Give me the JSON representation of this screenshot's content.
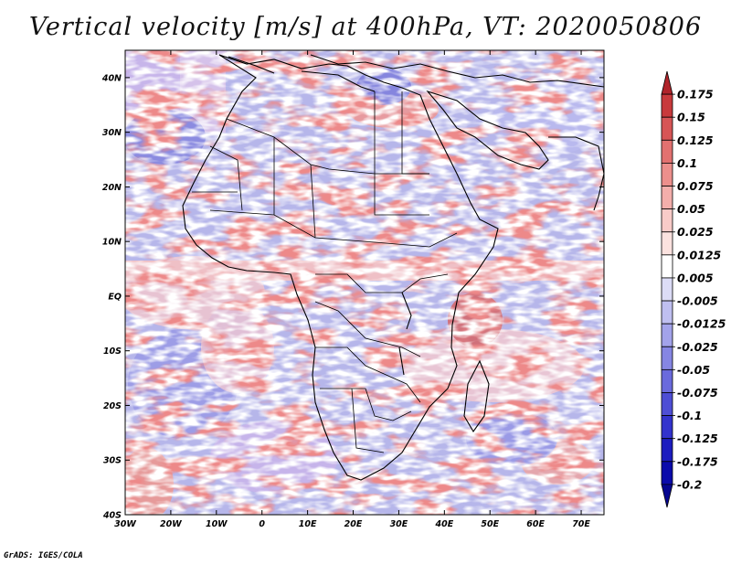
{
  "title": "Vertical velocity [m/s] at 400hPa, VT: 2020050806",
  "credit": "GrADS: IGES/COLA",
  "map": {
    "lon_range": [
      -30,
      75
    ],
    "lat_range": [
      -40,
      45
    ],
    "x_ticks": [
      {
        "lon": -30,
        "label": "30W"
      },
      {
        "lon": -20,
        "label": "20W"
      },
      {
        "lon": -10,
        "label": "10W"
      },
      {
        "lon": 0,
        "label": "0"
      },
      {
        "lon": 10,
        "label": "10E"
      },
      {
        "lon": 20,
        "label": "20E"
      },
      {
        "lon": 30,
        "label": "30E"
      },
      {
        "lon": 40,
        "label": "40E"
      },
      {
        "lon": 50,
        "label": "50E"
      },
      {
        "lon": 60,
        "label": "60E"
      },
      {
        "lon": 70,
        "label": "70E"
      }
    ],
    "y_ticks": [
      {
        "lat": 40,
        "label": "40N"
      },
      {
        "lat": 30,
        "label": "30N"
      },
      {
        "lat": 20,
        "label": "20N"
      },
      {
        "lat": 10,
        "label": "10N"
      },
      {
        "lat": 0,
        "label": "EQ"
      },
      {
        "lat": -10,
        "label": "10S"
      },
      {
        "lat": -20,
        "label": "20S"
      },
      {
        "lat": -30,
        "label": "30S"
      },
      {
        "lat": -40,
        "label": "40S"
      }
    ]
  },
  "colorbar": {
    "colors": [
      "#b0242b",
      "#c83a3c",
      "#d75556",
      "#e27170",
      "#ec8f8c",
      "#f3aeab",
      "#f8cbc8",
      "#fbe2df",
      "#ffffff",
      "#dcdcf6",
      "#bfbff0",
      "#a3a3ea",
      "#8686e3",
      "#6a6adc",
      "#4e4ed5",
      "#3333cd",
      "#1c1cbf",
      "#0b0bab",
      "#060690"
    ],
    "labels": [
      "0.175",
      "0.15",
      "0.125",
      "0.1",
      "0.075",
      "0.05",
      "0.025",
      "0.0125",
      "0.005",
      "-0.005",
      "-0.0125",
      "-0.025",
      "-0.05",
      "-0.075",
      "-0.1",
      "-0.125",
      "-0.175",
      "-0.2"
    ]
  }
}
